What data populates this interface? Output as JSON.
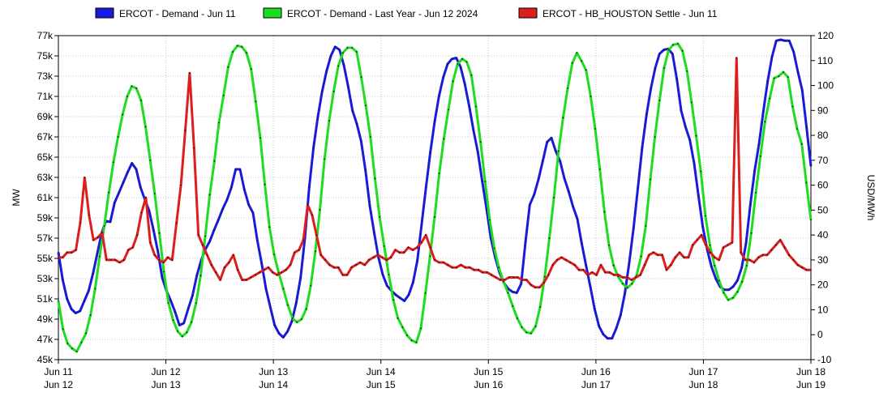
{
  "chart_data": {
    "type": "line",
    "ylabel": "MW",
    "y2label": "USD/MWh",
    "ylim": [
      45000,
      77000
    ],
    "y2lim": [
      -10,
      120
    ],
    "y_ticks": [
      "45k",
      "47k",
      "49k",
      "51k",
      "53k",
      "55k",
      "57k",
      "59k",
      "61k",
      "63k",
      "65k",
      "67k",
      "69k",
      "71k",
      "73k",
      "75k",
      "77k"
    ],
    "y2_ticks": [
      "-10",
      "0",
      "10",
      "20",
      "30",
      "40",
      "50",
      "60",
      "70",
      "80",
      "90",
      "100",
      "110",
      "120"
    ],
    "x_ticks": [
      {
        "top": "Jun 11",
        "bottom": "Jun 12"
      },
      {
        "top": "Jun 12",
        "bottom": "Jun 13"
      },
      {
        "top": "Jun 13",
        "bottom": "Jun 14"
      },
      {
        "top": "Jun 14",
        "bottom": "Jun 15"
      },
      {
        "top": "Jun 15",
        "bottom": "Jun 16"
      },
      {
        "top": "Jun 16",
        "bottom": "Jun 17"
      },
      {
        "top": "Jun 17",
        "bottom": "Jun 18"
      },
      {
        "top": "Jun 18",
        "bottom": "Jun 19"
      }
    ],
    "x_range_hours": [
      0,
      168
    ],
    "grid": true,
    "legend_position": "top",
    "series": [
      {
        "name": "ERCOT - Demand - Jun 11",
        "axis": "left",
        "color": "#1a1adc",
        "values": [
          55600,
          52900,
          51000,
          50000,
          49600,
          49800,
          50800,
          51800,
          53500,
          55500,
          57500,
          58700,
          58600,
          60500,
          61500,
          62500,
          63500,
          64400,
          63800,
          62000,
          60800,
          59700,
          57800,
          55700,
          53100,
          51800,
          50800,
          49700,
          48400,
          48600,
          50000,
          51300,
          53300,
          54800,
          55900,
          56700,
          57800,
          58800,
          59900,
          60800,
          62000,
          63800,
          63800,
          61800,
          60300,
          59500,
          56800,
          54500,
          52000,
          50200,
          48400,
          47600,
          47200,
          47800,
          48800,
          50600,
          53100,
          57000,
          62000,
          66000,
          69000,
          71500,
          73500,
          75000,
          75900,
          75600,
          74100,
          72000,
          69600,
          68300,
          66600,
          63700,
          60200,
          57600,
          55100,
          53400,
          52300,
          51800,
          51400,
          51100,
          50800,
          51400,
          52600,
          54800,
          58400,
          62000,
          65500,
          68500,
          71000,
          72900,
          74200,
          74700,
          74800,
          73900,
          72200,
          70000,
          67600,
          65500,
          62600,
          59900,
          57000,
          55100,
          53600,
          52600,
          52000,
          51700,
          51600,
          52500,
          56600,
          60300,
          61300,
          62800,
          64600,
          66500,
          66900,
          65600,
          64600,
          62900,
          61600,
          60100,
          58900,
          56500,
          54300,
          52200,
          50000,
          48300,
          47500,
          47100,
          47100,
          48100,
          49400,
          51600,
          54600,
          58000,
          62000,
          66000,
          69200,
          71800,
          73800,
          75200,
          75600,
          75700,
          75200,
          72700,
          69600,
          68000,
          66700,
          64400,
          61200,
          58100,
          55900,
          54200,
          53000,
          52200,
          51900,
          51900,
          52200,
          52800,
          54100,
          56500,
          60300,
          63700,
          66300,
          69500,
          72500,
          74900,
          76500,
          76600,
          76500,
          76500,
          75400,
          73400,
          71600,
          67900,
          64100
        ]
      },
      {
        "name": "ERCOT - Demand - Last Year - Jun 12 2024",
        "axis": "left",
        "color": "#1edc1e",
        "values": [
          50800,
          48000,
          46600,
          46100,
          45800,
          46700,
          47600,
          49400,
          52000,
          55200,
          58200,
          61500,
          64500,
          67000,
          69200,
          71000,
          72000,
          71800,
          70600,
          68000,
          64700,
          61400,
          57500,
          53700,
          50600,
          48900,
          47800,
          47300,
          47700,
          48700,
          50600,
          53300,
          57200,
          61300,
          64600,
          68400,
          71100,
          73900,
          75400,
          76000,
          75900,
          75300,
          73700,
          70500,
          66900,
          62300,
          58100,
          55400,
          53600,
          52000,
          50400,
          49100,
          48700,
          49000,
          50000,
          52300,
          55700,
          59800,
          64800,
          68600,
          71500,
          74000,
          75300,
          75800,
          75800,
          75400,
          72900,
          70100,
          67000,
          62900,
          59100,
          56200,
          53400,
          50900,
          49100,
          48200,
          47400,
          46900,
          46700,
          48100,
          51600,
          55200,
          59100,
          63400,
          66800,
          69700,
          72500,
          74200,
          74700,
          74400,
          73100,
          70000,
          66500,
          62600,
          58800,
          56000,
          54100,
          52700,
          51600,
          50300,
          49100,
          48200,
          47700,
          47600,
          48300,
          50200,
          53200,
          57000,
          61000,
          65600,
          68900,
          71800,
          74300,
          75300,
          74500,
          73600,
          71000,
          67800,
          63800,
          59600,
          56300,
          54300,
          53200,
          52500,
          52100,
          52500,
          53300,
          55200,
          58200,
          62800,
          67000,
          70600,
          73800,
          75600,
          76100,
          76200,
          75500,
          73500,
          70400,
          67100,
          63600,
          59200,
          56300,
          54300,
          52800,
          51600,
          50900,
          51100,
          51700,
          52700,
          54300,
          57500,
          61500,
          65100,
          68500,
          70800,
          72800,
          73000,
          73400,
          72900,
          70000,
          67800,
          66300,
          62500,
          58800
        ]
      },
      {
        "name": "ERCOT - HB_HOUSTON Settle - Jun 11",
        "axis": "right",
        "color": "#dc1e1e",
        "values": [
          31,
          31,
          33,
          33,
          34,
          45,
          63,
          48,
          38,
          39,
          41,
          30,
          30,
          30,
          29,
          30,
          34,
          35,
          40,
          49,
          55,
          37,
          32,
          30,
          29,
          31,
          30,
          45,
          60,
          82,
          105,
          75,
          40,
          36,
          32,
          28,
          25,
          22,
          27,
          29,
          32,
          26,
          22,
          22,
          23,
          24,
          25,
          26,
          27,
          25,
          24,
          25,
          26,
          28,
          33,
          34,
          38,
          52,
          48,
          40,
          32,
          30,
          28,
          27,
          27,
          24,
          24,
          27,
          28,
          29,
          28,
          30,
          31,
          32,
          31,
          30,
          31,
          34,
          33,
          33,
          35,
          34,
          35,
          37,
          40,
          35,
          30,
          29,
          29,
          28,
          27,
          27,
          28,
          27,
          27,
          26,
          26,
          25,
          25,
          24,
          23,
          22,
          22,
          23,
          23,
          23,
          22,
          22,
          20,
          19,
          19,
          21,
          24,
          28,
          30,
          31,
          30,
          29,
          28,
          26,
          26,
          24,
          25,
          24,
          28,
          25,
          25,
          24,
          24,
          23,
          23,
          22,
          23,
          24,
          28,
          32,
          33,
          32,
          32,
          26,
          28,
          31,
          33,
          31,
          31,
          36,
          38,
          40,
          36,
          33,
          31,
          30,
          35,
          36,
          37,
          111,
          33,
          30,
          30,
          29,
          31,
          32,
          32,
          34,
          36,
          38,
          35,
          32,
          30,
          28,
          27,
          26,
          26
        ]
      }
    ]
  }
}
